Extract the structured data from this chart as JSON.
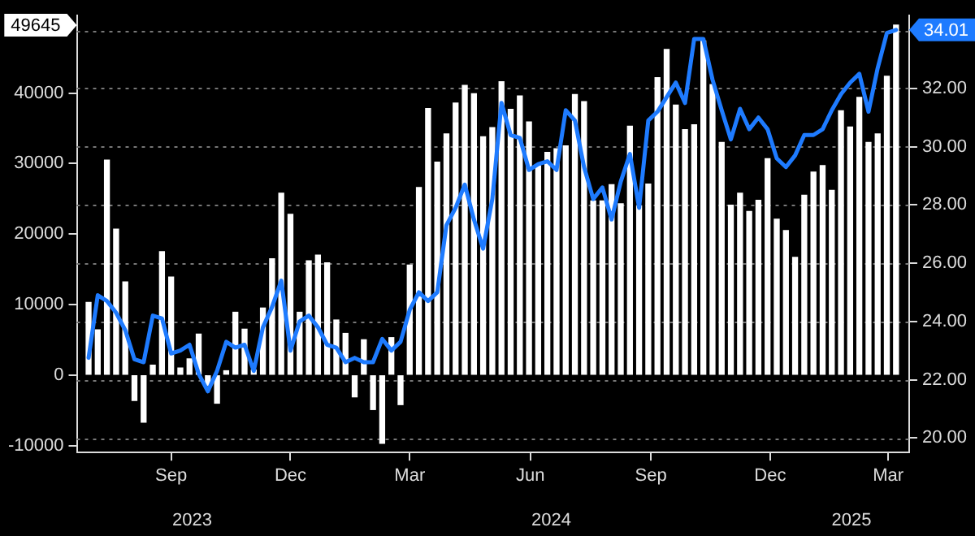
{
  "chart_data": {
    "type": "bar",
    "x": [
      "2023-07-14",
      "2023-07-21",
      "2023-07-28",
      "2023-08-04",
      "2023-08-11",
      "2023-08-18",
      "2023-08-25",
      "2023-09-01",
      "2023-09-08",
      "2023-09-15",
      "2023-09-22",
      "2023-09-29",
      "2023-10-06",
      "2023-10-13",
      "2023-10-20",
      "2023-10-27",
      "2023-11-03",
      "2023-11-10",
      "2023-11-17",
      "2023-11-24",
      "2023-12-01",
      "2023-12-08",
      "2023-12-15",
      "2023-12-22",
      "2023-12-29",
      "2024-01-05",
      "2024-01-12",
      "2024-01-19",
      "2024-01-26",
      "2024-02-02",
      "2024-02-09",
      "2024-02-16",
      "2024-02-23",
      "2024-03-01",
      "2024-03-08",
      "2024-03-15",
      "2024-03-22",
      "2024-03-29",
      "2024-04-05",
      "2024-04-12",
      "2024-04-19",
      "2024-04-26",
      "2024-05-03",
      "2024-05-10",
      "2024-05-17",
      "2024-05-24",
      "2024-05-31",
      "2024-06-07",
      "2024-06-14",
      "2024-06-21",
      "2024-06-28",
      "2024-07-05",
      "2024-07-12",
      "2024-07-19",
      "2024-07-26",
      "2024-08-02",
      "2024-08-09",
      "2024-08-16",
      "2024-08-23",
      "2024-08-30",
      "2024-09-06",
      "2024-09-13",
      "2024-09-20",
      "2024-09-27",
      "2024-10-04",
      "2024-10-11",
      "2024-10-18",
      "2024-10-25",
      "2024-11-01",
      "2024-11-08",
      "2024-11-15",
      "2024-11-22",
      "2024-11-29",
      "2024-12-06",
      "2024-12-13",
      "2024-12-20",
      "2024-12-27",
      "2025-01-03",
      "2025-01-10",
      "2025-01-17",
      "2025-01-24",
      "2025-01-31",
      "2025-02-07",
      "2025-02-14",
      "2025-02-21",
      "2025-02-28",
      "2025-03-07",
      "2025-03-14",
      "2025-03-21"
    ],
    "series": [
      {
        "color": "#ffffff",
        "values": [
          10300,
          6400,
          30500,
          20700,
          13200,
          -3600,
          -6700,
          1400,
          17500,
          13900,
          1000,
          2300,
          5800,
          -1500,
          -4000,
          600,
          8900,
          6500,
          700,
          9500,
          16500,
          25800,
          22800,
          8900,
          16200,
          17000,
          15900,
          7800,
          5900,
          -3100,
          5000,
          -4900,
          -9700,
          5300,
          -4200,
          15600,
          26600,
          37800,
          30200,
          34200,
          38600,
          41100,
          39900,
          33800,
          35100,
          41600,
          37700,
          39600,
          35900,
          29700,
          31600,
          32100,
          32500,
          39800,
          38800,
          24700,
          24700,
          27000,
          24300,
          35300,
          24000,
          27100,
          42200,
          46200,
          38300,
          34800,
          35500,
          47400,
          41200,
          33000,
          24100,
          25800,
          23200,
          24800,
          30700,
          22100,
          20500,
          16700,
          25500,
          28800,
          29700,
          26200,
          37500,
          35200,
          39400,
          33000,
          34200,
          42400,
          49645
        ]
      },
      {
        "type": "line",
        "axis": "y2",
        "color": "#1e7bff",
        "values": [
          22.75,
          24.9,
          24.7,
          24.3,
          23.7,
          22.7,
          22.6,
          24.2,
          24.1,
          22.9,
          23.0,
          23.2,
          22.2,
          21.6,
          22.3,
          23.3,
          23.1,
          23.2,
          22.3,
          23.8,
          24.5,
          25.4,
          23.0,
          24.0,
          24.2,
          23.8,
          23.2,
          23.1,
          22.6,
          22.75,
          22.6,
          22.6,
          23.4,
          23.0,
          23.3,
          24.4,
          25.0,
          24.7,
          25.0,
          27.3,
          27.9,
          28.7,
          27.5,
          26.5,
          28.2,
          31.5,
          30.4,
          30.3,
          29.2,
          29.4,
          29.5,
          29.2,
          31.25,
          30.9,
          29.3,
          28.2,
          28.6,
          27.5,
          28.8,
          29.75,
          27.9,
          30.9,
          31.2,
          31.7,
          32.2,
          31.5,
          33.7,
          33.7,
          32.3,
          31.25,
          30.25,
          31.3,
          30.6,
          31.0,
          30.6,
          29.6,
          29.3,
          29.7,
          30.4,
          30.4,
          30.6,
          31.25,
          31.8,
          32.2,
          32.5,
          31.2,
          32.7,
          33.9,
          34.01
        ]
      }
    ],
    "xlim": [
      "2023-07-05",
      "2025-03-31"
    ],
    "xticks": [
      {
        "value": "2023-09-15",
        "label": "Sep"
      },
      {
        "value": "2023-12-15",
        "label": "Dec"
      },
      {
        "value": "2024-03-15",
        "label": "Mar"
      },
      {
        "value": "2024-06-15",
        "label": "Jun"
      },
      {
        "value": "2024-09-15",
        "label": "Sep"
      },
      {
        "value": "2024-12-15",
        "label": "Dec"
      },
      {
        "value": "2025-03-15",
        "label": "Mar"
      }
    ],
    "x2lim": [
      "2023-07-05",
      "2025-03-31"
    ],
    "x2ticks": [
      {
        "value": "2023-10-01",
        "label": "2023"
      },
      {
        "value": "2024-07-01",
        "label": "2024"
      },
      {
        "value": "2025-02-15",
        "label": "2025"
      }
    ],
    "ylim": [
      -11000,
      51000
    ],
    "yticks": [
      -10000,
      0,
      10000,
      20000,
      30000,
      40000,
      49645
    ],
    "y2lim": [
      19.5,
      34.5
    ],
    "y2ticks": [
      {
        "value": 20,
        "label": "20.00"
      },
      {
        "value": 22,
        "label": "22.00"
      },
      {
        "value": 24,
        "label": "24.00"
      },
      {
        "value": 26,
        "label": "26.00"
      },
      {
        "value": 28,
        "label": "28.00"
      },
      {
        "value": 30,
        "label": "30.00"
      },
      {
        "value": 32,
        "label": "32.00"
      },
      {
        "value": 34,
        "label": null
      },
      {
        "value": 34.01,
        "label": "34.01"
      }
    ],
    "grid": "y",
    "legend": false,
    "marker": "none"
  }
}
